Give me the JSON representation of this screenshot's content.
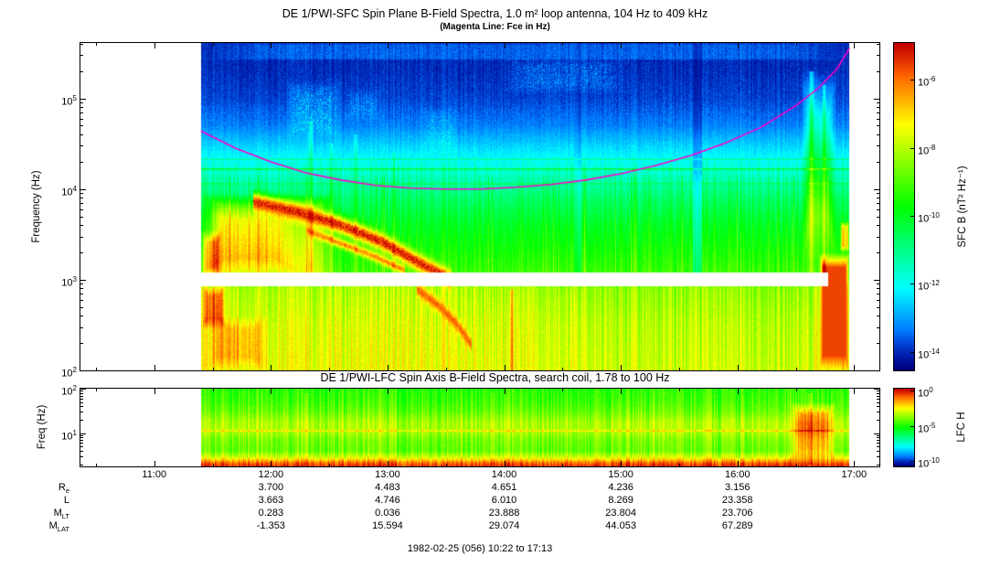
{
  "caption": "1982-02-25 (056) 10:22 to 17:13",
  "chart_data": [
    {
      "type": "heatmap",
      "name": "sfc-spectrogram",
      "title": "DE 1/PWI-SFC  Spin Plane B-Field Spectra, 1.0 m² loop antenna, 104 Hz to 409 kHz",
      "subtitle": "(Magenta Line: Fce in Hz)",
      "ylabel": "Frequency (Hz)",
      "ylim_hz": [
        100,
        409000
      ],
      "log_top": 5.612,
      "log_bottom": 2.0,
      "y_tick_exps": [
        5,
        4,
        3,
        2
      ],
      "x_range": [
        10.367,
        17.217
      ],
      "x_tick_hours": [
        11,
        12,
        13,
        14,
        15,
        16,
        17
      ],
      "x_tick_labels": [
        "11:00",
        "12:00",
        "13:00",
        "14:00",
        "15:00",
        "16:00",
        "17:00"
      ],
      "data_t": [
        11.4,
        16.96
      ],
      "gap_band": [
        2.93,
        3.08
      ],
      "gap_t_end": 16.78,
      "seed": 7,
      "base_profile": [
        [
          2.0,
          0.74
        ],
        [
          2.5,
          0.72
        ],
        [
          2.9,
          0.68
        ],
        [
          3.05,
          0.56
        ],
        [
          3.3,
          0.52
        ],
        [
          3.6,
          0.47
        ],
        [
          3.9,
          0.4
        ],
        [
          4.2,
          0.3
        ],
        [
          4.45,
          0.22
        ],
        [
          4.7,
          0.13
        ],
        [
          5.0,
          0.08
        ],
        [
          5.3,
          0.06
        ],
        [
          5.61,
          0.05
        ]
      ],
      "features": [
        {
          "type": "patch",
          "t": [
            11.4,
            16.96
          ],
          "d": [
            5.42,
            5.612
          ],
          "dv": 0.05,
          "soft": 0.2
        },
        {
          "type": "patch",
          "t": [
            11.4,
            12.55
          ],
          "d": [
            2.95,
            3.95
          ],
          "dv": 0.19,
          "soft": 0.3
        },
        {
          "type": "patch",
          "t": [
            11.45,
            12.2
          ],
          "d": [
            3.1,
            3.8
          ],
          "dv": 0.1,
          "soft": 0.4
        },
        {
          "type": "patch",
          "t": [
            11.4,
            11.58
          ],
          "d": [
            3.0,
            3.55
          ],
          "dv": 0.22,
          "soft": 0.5
        },
        {
          "type": "patch",
          "t": [
            11.4,
            11.62
          ],
          "d": [
            2.45,
            2.95
          ],
          "dv": 0.2,
          "soft": 0.5
        },
        {
          "type": "patch",
          "t": [
            11.4,
            12.0
          ],
          "d": [
            2.0,
            2.6
          ],
          "dv": 0.1,
          "soft": 0.5
        },
        {
          "type": "ridge",
          "pts": [
            [
              11.85,
              3.86
            ],
            [
              12.25,
              3.74
            ],
            [
              12.6,
              3.6
            ],
            [
              12.95,
              3.42
            ],
            [
              13.25,
              3.2
            ],
            [
              13.55,
              3.0
            ]
          ],
          "w": 0.09,
          "v": 0.97
        },
        {
          "type": "ridge",
          "pts": [
            [
              12.3,
              3.55
            ],
            [
              12.6,
              3.4
            ],
            [
              12.9,
              3.25
            ],
            [
              13.15,
              3.1
            ]
          ],
          "w": 0.05,
          "v": 0.86
        },
        {
          "type": "ridge",
          "pts": [
            [
              13.25,
              2.9
            ],
            [
              13.45,
              2.7
            ],
            [
              13.6,
              2.5
            ],
            [
              13.72,
              2.28
            ]
          ],
          "w": 0.07,
          "v": 0.9
        },
        {
          "type": "patch",
          "t": [
            16.7,
            16.96
          ],
          "d": [
            2.0,
            3.3
          ],
          "set": 0.93,
          "soft": 0.25
        },
        {
          "type": "patch",
          "t": [
            16.88,
            16.96
          ],
          "d": [
            3.3,
            3.65
          ],
          "dv": 0.28,
          "soft": 0.4
        },
        {
          "type": "patch",
          "t": [
            16.55,
            16.85
          ],
          "d": [
            3.2,
            5.3
          ],
          "dv": 0.16,
          "soft": 0.5
        },
        {
          "type": "vline",
          "t": 16.63,
          "d": [
            2.95,
            5.3
          ],
          "dv": 0.16,
          "w": 3
        },
        {
          "type": "vline",
          "t": 16.74,
          "d": [
            2.95,
            5.15
          ],
          "dv": 0.12,
          "w": 2
        },
        {
          "type": "patch",
          "t": [
            12.12,
            12.62
          ],
          "d": [
            4.55,
            5.2
          ],
          "dv": 0.16,
          "soft": 0.5,
          "patchy": true
        },
        {
          "type": "patch",
          "t": [
            12.62,
            12.95
          ],
          "d": [
            4.75,
            5.1
          ],
          "dv": 0.1,
          "soft": 0.5,
          "patchy": true
        },
        {
          "type": "patch",
          "t": [
            13.95,
            15.1
          ],
          "d": [
            5.05,
            5.45
          ],
          "dv": 0.11,
          "soft": 0.5,
          "patchy": true
        },
        {
          "type": "patch",
          "t": [
            13.3,
            13.62
          ],
          "d": [
            4.35,
            4.9
          ],
          "dv": 0.09,
          "soft": 0.5,
          "patchy": true
        },
        {
          "type": "hline",
          "d": 4.22,
          "w": 1,
          "dv": 0.13
        },
        {
          "type": "hline",
          "d": 4.34,
          "w": 1,
          "dv": 0.07
        },
        {
          "type": "hline",
          "d": 4.06,
          "w": 1,
          "dv": 0.05
        },
        {
          "type": "vline",
          "t": 12.34,
          "d": [
            3.08,
            4.75
          ],
          "dv": 0.1,
          "w": 3
        },
        {
          "type": "vline",
          "t": 12.52,
          "d": [
            3.08,
            4.5
          ],
          "dv": 0.07,
          "w": 2
        },
        {
          "type": "vline",
          "t": 12.72,
          "d": [
            3.08,
            4.6
          ],
          "dv": 0.08,
          "w": 2
        },
        {
          "type": "vline",
          "t": 13.05,
          "d": [
            3.08,
            4.4
          ],
          "dv": 0.06,
          "w": 2
        },
        {
          "type": "vline",
          "t": 14.06,
          "d": [
            2.0,
            2.9
          ],
          "dv": 0.18,
          "w": 2
        },
        {
          "type": "vline",
          "t": 15.64,
          "d": [
            2.0,
            2.93
          ],
          "dv": 0.12,
          "w": 2
        },
        {
          "type": "darken",
          "t": [
            15.62,
            15.7
          ],
          "d": [
            3.08,
            5.6
          ],
          "mul": 0.72
        },
        {
          "type": "darken",
          "t": [
            14.6,
            14.66
          ],
          "d": [
            3.08,
            5.6
          ],
          "mul": 0.85
        },
        {
          "type": "darken",
          "t": [
            14.3,
            16.65
          ],
          "d": [
            2.0,
            2.93
          ],
          "mul": 0.95
        }
      ],
      "fce_line": {
        "color": "#ff00cc",
        "points": [
          [
            11.4,
            4.64
          ],
          [
            11.7,
            4.45
          ],
          [
            12.0,
            4.3
          ],
          [
            12.3,
            4.18
          ],
          [
            12.6,
            4.1
          ],
          [
            12.9,
            4.04
          ],
          [
            13.2,
            4.01
          ],
          [
            13.5,
            4.0
          ],
          [
            13.8,
            4.0
          ],
          [
            14.1,
            4.02
          ],
          [
            14.4,
            4.05
          ],
          [
            14.7,
            4.1
          ],
          [
            15.0,
            4.17
          ],
          [
            15.3,
            4.26
          ],
          [
            15.6,
            4.37
          ],
          [
            15.9,
            4.51
          ],
          [
            16.2,
            4.68
          ],
          [
            16.5,
            4.92
          ],
          [
            16.7,
            5.12
          ],
          [
            16.85,
            5.32
          ],
          [
            16.96,
            5.55
          ]
        ]
      },
      "colorbar": {
        "label": "SFC B (nT² Hz⁻¹)",
        "exp_top": -4.92,
        "exp_bottom": -14.54,
        "tick_exps": [
          -6,
          -8,
          -10,
          -12,
          -14
        ]
      }
    },
    {
      "type": "heatmap",
      "name": "lfc-spectrogram",
      "title": "DE 1/PWI-LFC  Spin Axis B-Field Spectra, search coil, 1.78 to 100 Hz",
      "ylabel": "Freq (Hz)",
      "ylim_hz": [
        1.78,
        100
      ],
      "log_top": 2.0,
      "log_bottom": 0.25,
      "y_tick_exps": [
        2,
        1
      ],
      "x_range": [
        10.367,
        17.217
      ],
      "data_t": [
        11.4,
        16.96
      ],
      "seed": 13,
      "base_profile": [
        [
          0.25,
          0.96
        ],
        [
          0.33,
          0.9
        ],
        [
          0.45,
          0.72
        ],
        [
          0.6,
          0.6
        ],
        [
          0.85,
          0.62
        ],
        [
          1.05,
          0.68
        ],
        [
          1.25,
          0.67
        ],
        [
          1.5,
          0.6
        ],
        [
          1.75,
          0.56
        ],
        [
          2.0,
          0.54
        ]
      ],
      "features": [
        {
          "type": "hline",
          "d": 1.07,
          "w": 1,
          "dv": 0.08
        },
        {
          "type": "patch",
          "t": [
            16.45,
            16.85
          ],
          "d": [
            0.35,
            1.7
          ],
          "dv": 0.2,
          "soft": 0.4
        },
        {
          "type": "vline",
          "t": 12.3,
          "d": [
            0.3,
            1.9
          ],
          "dv": 0.06,
          "w": 2
        },
        {
          "type": "vline",
          "t": 13.9,
          "d": [
            0.3,
            1.9
          ],
          "dv": 0.05,
          "w": 2
        },
        {
          "type": "vline",
          "t": 16.62,
          "d": [
            0.3,
            1.9
          ],
          "dv": 0.1,
          "w": 3
        }
      ],
      "colorbar": {
        "label": "LFC H",
        "exp_top": 0.3,
        "exp_bottom": -10.8,
        "tick_exps": [
          0,
          -5,
          -10
        ]
      }
    }
  ],
  "ephemeris": {
    "column_hours": [
      12,
      13,
      14,
      15,
      16
    ],
    "rows": [
      {
        "label": "R",
        "sub": "e",
        "values": [
          "3.700",
          "4.483",
          "4.651",
          "4.236",
          "3.156"
        ]
      },
      {
        "label": "L",
        "sub": "",
        "values": [
          "3.663",
          "4.746",
          "6.010",
          "8.269",
          "23.358"
        ]
      },
      {
        "label": "M",
        "sub": "LT",
        "values": [
          "0.283",
          "0.036",
          "23.888",
          "23.804",
          "23.706"
        ]
      },
      {
        "label": "M",
        "sub": "LAT",
        "values": [
          "-1.353",
          "15.594",
          "29.074",
          "44.053",
          "67.289"
        ]
      }
    ]
  }
}
